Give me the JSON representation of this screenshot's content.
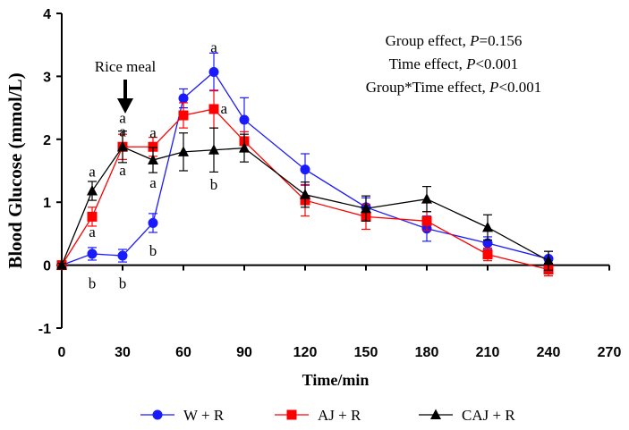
{
  "chart_data": {
    "type": "line",
    "xlabel": "Time/min",
    "ylabel": "Blood Glucose (mmol/L)",
    "xlim": [
      0,
      270
    ],
    "ylim": [
      -1,
      4
    ],
    "xticks": [
      0,
      30,
      60,
      90,
      120,
      150,
      180,
      210,
      240,
      270
    ],
    "yticks": [
      -1,
      0,
      1,
      2,
      3,
      4
    ],
    "x": [
      0,
      15,
      30,
      45,
      60,
      75,
      90,
      120,
      150,
      180,
      210,
      240
    ],
    "series": [
      {
        "name": "W + R",
        "color": "#1a1aff",
        "marker": "circle",
        "values": [
          0,
          0.18,
          0.15,
          0.67,
          2.65,
          3.07,
          2.31,
          1.52,
          0.92,
          0.58,
          0.35,
          0.1
        ],
        "errors": [
          0.03,
          0.1,
          0.1,
          0.15,
          0.15,
          0.3,
          0.35,
          0.25,
          0.15,
          0.2,
          0.1,
          0.12
        ]
      },
      {
        "name": "AJ + R",
        "color": "#ff0000",
        "marker": "square",
        "values": [
          0,
          0.77,
          1.88,
          1.88,
          2.38,
          2.48,
          1.97,
          1.03,
          0.77,
          0.7,
          0.17,
          -0.07
        ],
        "errors": [
          0.03,
          0.15,
          0.2,
          0.15,
          0.2,
          0.3,
          0.15,
          0.25,
          0.2,
          0.15,
          0.1,
          0.1
        ]
      },
      {
        "name": "CAJ + R",
        "color": "#000000",
        "marker": "triangle",
        "values": [
          0,
          1.18,
          1.88,
          1.67,
          1.8,
          1.83,
          1.86,
          1.12,
          0.9,
          1.05,
          0.6,
          0.07
        ],
        "errors": [
          0.03,
          0.15,
          0.25,
          0.2,
          0.3,
          0.35,
          0.22,
          0.2,
          0.2,
          0.2,
          0.2,
          0.15
        ]
      }
    ],
    "annotations": {
      "arrow_label": "Rice meal",
      "stats": [
        "Group effect, ",
        "Time effect, ",
        "Group*Time effect, "
      ],
      "stats_p": [
        "=0.156",
        "<0.001",
        "<0.001"
      ],
      "p_symbol": "P",
      "letters": [
        {
          "text": "a",
          "x": 15,
          "y": 1.48
        },
        {
          "text": "a",
          "x": 15,
          "y": 0.52
        },
        {
          "text": "b",
          "x": 15,
          "y": -0.3
        },
        {
          "text": "a",
          "x": 30,
          "y": 2.33
        },
        {
          "text": "a",
          "x": 30,
          "y": 2.12
        },
        {
          "text": "a",
          "x": 30,
          "y": 1.5
        },
        {
          "text": "b",
          "x": 30,
          "y": -0.3
        },
        {
          "text": "a",
          "x": 45,
          "y": 2.1
        },
        {
          "text": "a",
          "x": 45,
          "y": 1.3
        },
        {
          "text": "b",
          "x": 45,
          "y": 0.22
        },
        {
          "text": "a",
          "x": 75,
          "y": 3.45
        },
        {
          "text": "a",
          "x": 80,
          "y": 2.48
        },
        {
          "text": "b",
          "x": 75,
          "y": 1.27
        }
      ]
    }
  }
}
